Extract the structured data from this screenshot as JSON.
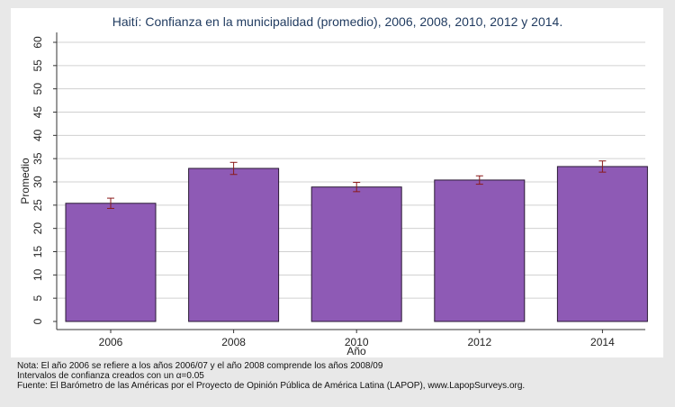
{
  "chart_data": {
    "type": "bar",
    "title": "Haití: Confianza en la municipalidad (promedio), 2006, 2008, 2010, 2012 y 2014.",
    "xlabel": "Año",
    "ylabel": "Promedio",
    "categories": [
      "2006",
      "2008",
      "2010",
      "2012",
      "2014"
    ],
    "values": [
      25.4,
      32.9,
      28.9,
      30.4,
      33.3
    ],
    "ci_low": [
      24.3,
      31.6,
      27.9,
      29.5,
      32.1
    ],
    "ci_high": [
      26.5,
      34.2,
      29.9,
      31.3,
      34.5
    ],
    "ylim": [
      0,
      60
    ],
    "yticks": [
      "0",
      "5",
      "10",
      "15",
      "20",
      "25",
      "30",
      "35",
      "40",
      "45",
      "50",
      "55",
      "60"
    ],
    "grid": true,
    "bar_color": "#8e5ab5",
    "error_bar_color": "#8b1a1a",
    "background_color": "#e8e8e8",
    "plot_background": "#ffffff",
    "grid_color": "#d0d0d0"
  },
  "notes": [
    "Nota: El año 2006 se refiere a los años 2006/07 y el año 2008 comprende los años 2008/09",
    "Intervalos de confianza creados con un α=0.05",
    "Fuente: El Barómetro de las Américas por el Proyecto de Opinión Pública de América Latina (LAPOP), www.LapopSurveys.org."
  ]
}
